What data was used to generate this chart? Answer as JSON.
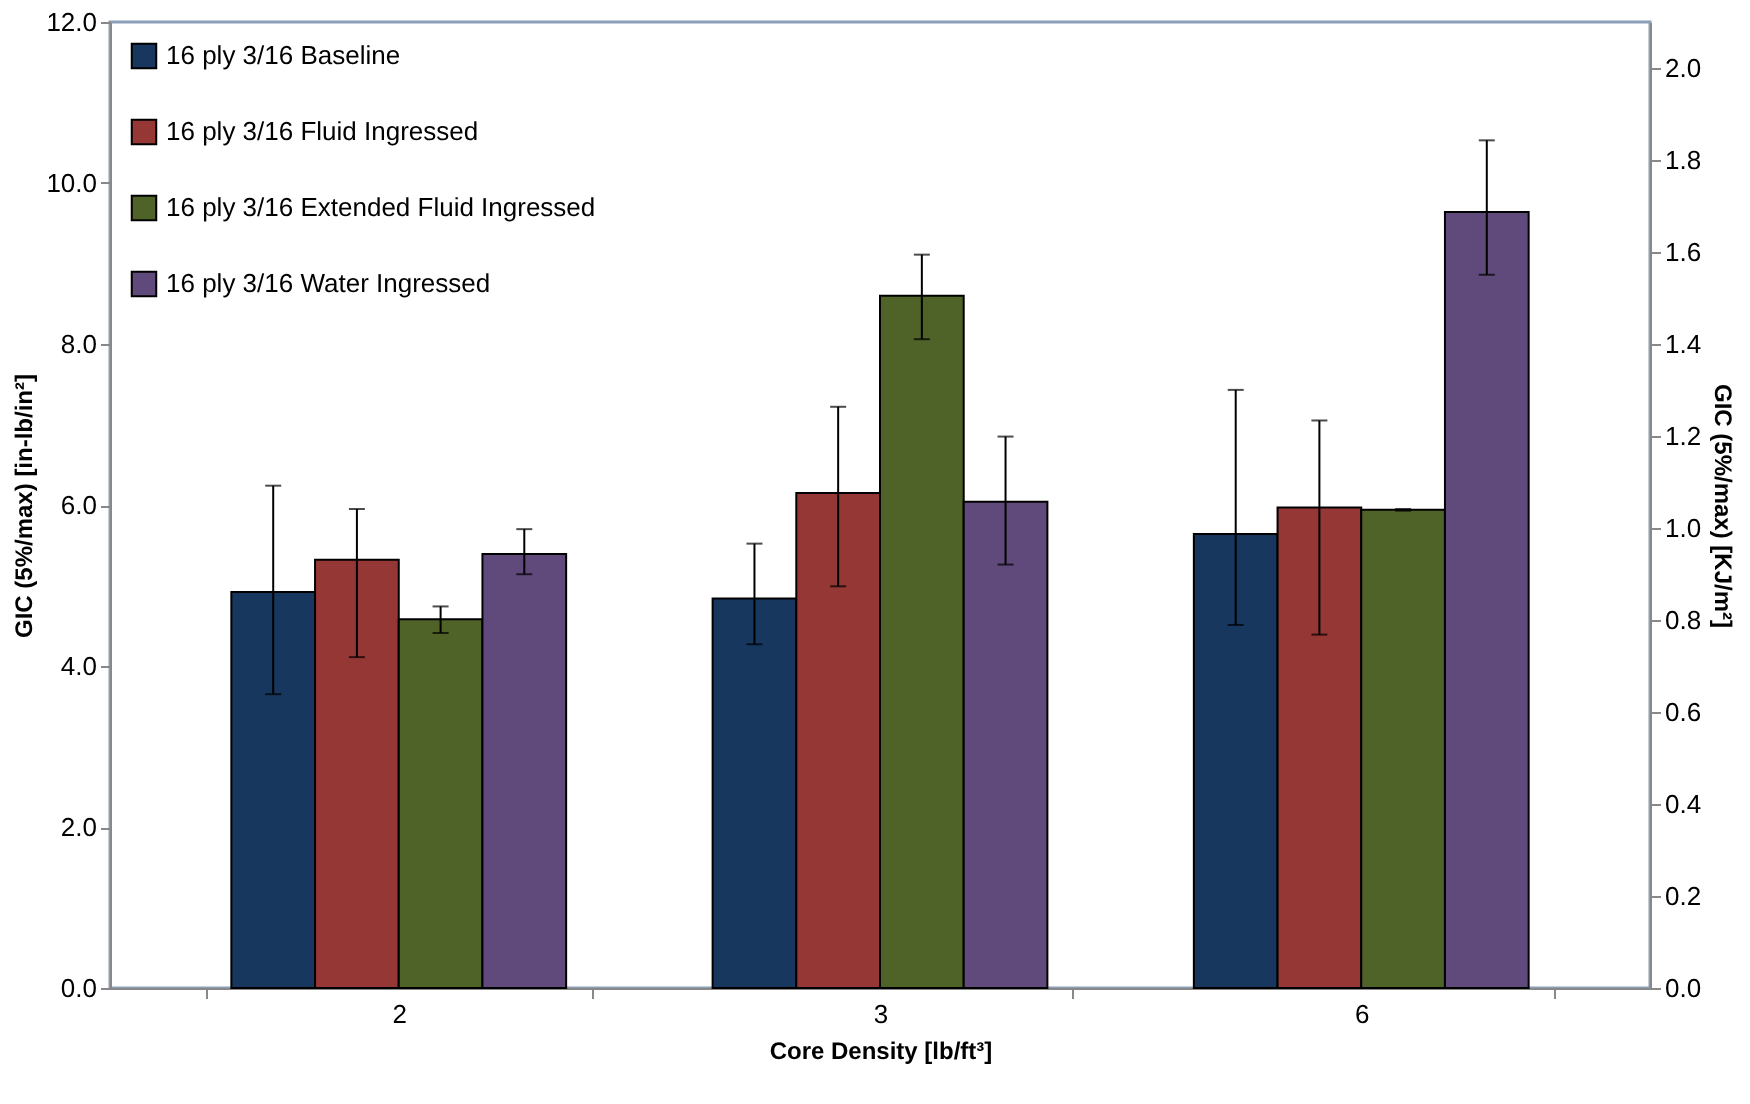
{
  "chart_data": {
    "type": "bar",
    "xlabel": "Core Density [lb/ft³]",
    "ylabel": "GIC (5%/max)  [in-lb/in²]",
    "y2label": "GIC (5%/max) [KJ/m²]",
    "categories": [
      "2",
      "3",
      "6"
    ],
    "series": [
      {
        "name": "16 ply 3/16 Baseline",
        "color": "#17375e",
        "values": [
          4.92,
          4.84,
          5.64
        ],
        "errors": [
          [
            3.65,
            6.24
          ],
          [
            4.27,
            5.52
          ],
          [
            4.51,
            7.43
          ]
        ]
      },
      {
        "name": "16 ply 3/16 Fluid Ingressed",
        "color": "#953735",
        "values": [
          5.32,
          6.15,
          5.97
        ],
        "errors": [
          [
            4.11,
            5.95
          ],
          [
            4.99,
            7.22
          ],
          [
            4.39,
            7.05
          ]
        ]
      },
      {
        "name": "16 ply 3/16 Extended Fluid Ingressed",
        "color": "#4f6228",
        "values": [
          4.58,
          8.6,
          5.94
        ],
        "errors": [
          [
            4.41,
            4.74
          ],
          [
            8.06,
            9.11
          ],
          [
            5.93,
            5.95
          ]
        ]
      },
      {
        "name": "16 ply 3/16 Water Ingressed",
        "color": "#604a7b",
        "values": [
          5.39,
          6.04,
          9.64
        ],
        "errors": [
          [
            5.14,
            5.7
          ],
          [
            5.26,
            6.85
          ],
          [
            8.86,
            10.53
          ]
        ]
      }
    ],
    "ylim": [
      0,
      12
    ],
    "yticks": [
      {
        "value": 0,
        "label": "0.0"
      },
      {
        "value": 2,
        "label": "2.0"
      },
      {
        "value": 4,
        "label": "4.0"
      },
      {
        "value": 6,
        "label": "6.0"
      },
      {
        "value": 8,
        "label": "8.0"
      },
      {
        "value": 10,
        "label": "10.0"
      },
      {
        "value": 12,
        "label": "12.0"
      }
    ],
    "y2lim": [
      0,
      2.1
    ],
    "y2ticks": [
      {
        "value": 0,
        "label": "0.0"
      },
      {
        "value": 0.2,
        "label": "0.2"
      },
      {
        "value": 0.4,
        "label": "0.4"
      },
      {
        "value": 0.6,
        "label": "0.6"
      },
      {
        "value": 0.8,
        "label": "0.8"
      },
      {
        "value": 1.0,
        "label": "1.0"
      },
      {
        "value": 1.2,
        "label": "1.2"
      },
      {
        "value": 1.4,
        "label": "1.4"
      },
      {
        "value": 1.6,
        "label": "1.6"
      },
      {
        "value": 1.8,
        "label": "1.8"
      },
      {
        "value": 2.0,
        "label": "2.0"
      }
    ],
    "grid": false,
    "legend": "top left"
  }
}
